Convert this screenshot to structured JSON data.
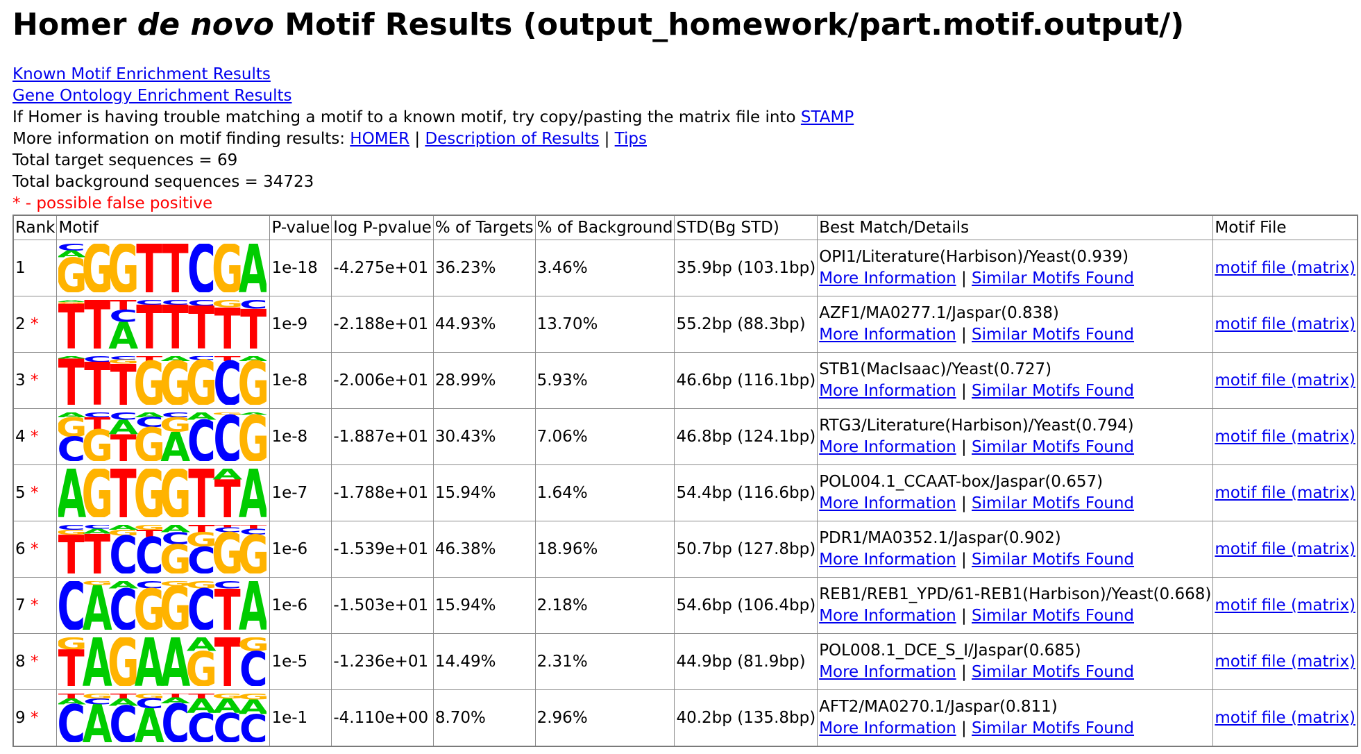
{
  "title": {
    "pre": "Homer ",
    "em": "de novo",
    "post": " Motif Results (output_homework/part.motif.output/)"
  },
  "links": {
    "known": "Known Motif Enrichment Results",
    "go": "Gene Ontology Enrichment Results"
  },
  "stamp": {
    "text": "If Homer is having trouble matching a motif to a known motif, try copy/pasting the matrix file into ",
    "link": "STAMP"
  },
  "more": {
    "text": "More information on motif finding results: ",
    "homer": "HOMER",
    "sep1": " | ",
    "desc": "Description of Results",
    "sep2": " | ",
    "tips": "Tips"
  },
  "totals": {
    "target": "Total target sequences = 69",
    "background": "Total background sequences = 34723"
  },
  "false_positive_note": "* - possible false positive",
  "colors": {
    "link": "#0000EE",
    "false_positive": "#FF0000",
    "A": "#00CC00",
    "C": "#0000FF",
    "G": "#FFB300",
    "T": "#FF0000"
  },
  "table": {
    "headers": [
      "Rank",
      "Motif",
      "P-value",
      "log P-pvalue",
      "% of Targets",
      "% of Background",
      "STD(Bg STD)",
      "Best Match/Details",
      "Motif File"
    ],
    "more_info": "More Information",
    "sep": " | ",
    "similar": "Similar Motifs Found",
    "motif_file": "motif file (matrix)",
    "rows": [
      {
        "rank": "1",
        "star": "",
        "p": "1e-18",
        "logp": "-4.275e+01",
        "targets": "36.23%",
        "bg": "3.46%",
        "std": "35.9bp (103.1bp)",
        "match": "OPI1/Literature(Harbison)/Yeast(0.939)",
        "logo": [
          [
            [
              "G",
              0.72
            ],
            [
              "C",
              0.14
            ],
            [
              "A",
              0.14
            ]
          ],
          [
            [
              "G",
              1
            ]
          ],
          [
            [
              "G",
              1
            ]
          ],
          [
            [
              "T",
              1
            ]
          ],
          [
            [
              "T",
              1
            ]
          ],
          [
            [
              "C",
              1
            ]
          ],
          [
            [
              "G",
              1
            ]
          ],
          [
            [
              "A",
              1
            ]
          ]
        ]
      },
      {
        "rank": "2",
        "star": "*",
        "p": "1e-9",
        "logp": "-2.188e+01",
        "targets": "44.93%",
        "bg": "13.70%",
        "std": "55.2bp (88.3bp)",
        "match": "AZF1/MA0277.1/Jaspar(0.838)",
        "logo": [
          [
            [
              "T",
              0.92
            ],
            [
              "A",
              0.04
            ],
            [
              "G",
              0.04
            ]
          ],
          [
            [
              "T",
              1
            ]
          ],
          [
            [
              "A",
              0.55
            ],
            [
              "C",
              0.25
            ],
            [
              "T",
              0.2
            ]
          ],
          [
            [
              "T",
              0.9
            ],
            [
              "C",
              0.1
            ]
          ],
          [
            [
              "T",
              0.9
            ],
            [
              "C",
              0.1
            ]
          ],
          [
            [
              "T",
              0.88
            ],
            [
              "C",
              0.12
            ]
          ],
          [
            [
              "T",
              0.85
            ],
            [
              "G",
              0.15
            ]
          ],
          [
            [
              "T",
              0.82
            ],
            [
              "C",
              0.18
            ]
          ]
        ]
      },
      {
        "rank": "3",
        "star": "*",
        "p": "1e-8",
        "logp": "-2.006e+01",
        "targets": "28.99%",
        "bg": "5.93%",
        "std": "46.6bp (116.1bp)",
        "match": "STB1(MacIsaac)/Yeast(0.727)",
        "logo": [
          [
            [
              "T",
              0.95
            ],
            [
              "A",
              0.05
            ]
          ],
          [
            [
              "T",
              0.88
            ],
            [
              "C",
              0.12
            ]
          ],
          [
            [
              "T",
              0.85
            ],
            [
              "G",
              0.08
            ],
            [
              "C",
              0.07
            ]
          ],
          [
            [
              "G",
              0.9
            ],
            [
              "T",
              0.1
            ]
          ],
          [
            [
              "G",
              0.9
            ],
            [
              "A",
              0.1
            ]
          ],
          [
            [
              "G",
              0.92
            ],
            [
              "C",
              0.08
            ]
          ],
          [
            [
              "C",
              0.9
            ],
            [
              "T",
              0.1
            ]
          ],
          [
            [
              "G",
              0.9
            ],
            [
              "A",
              0.1
            ]
          ]
        ]
      },
      {
        "rank": "4",
        "star": "*",
        "p": "1e-8",
        "logp": "-1.887e+01",
        "targets": "30.43%",
        "bg": "7.06%",
        "std": "46.8bp (124.1bp)",
        "match": "RTG3/Literature(Harbison)/Yeast(0.794)",
        "logo": [
          [
            [
              "C",
              0.5
            ],
            [
              "G",
              0.4
            ],
            [
              "A",
              0.1
            ]
          ],
          [
            [
              "G",
              0.65
            ],
            [
              "T",
              0.25
            ],
            [
              "C",
              0.1
            ]
          ],
          [
            [
              "T",
              0.55
            ],
            [
              "A",
              0.3
            ],
            [
              "C",
              0.15
            ]
          ],
          [
            [
              "G",
              0.7
            ],
            [
              "C",
              0.2
            ],
            [
              "A",
              0.1
            ]
          ],
          [
            [
              "A",
              0.6
            ],
            [
              "G",
              0.3
            ],
            [
              "C",
              0.1
            ]
          ],
          [
            [
              "C",
              0.85
            ],
            [
              "A",
              0.15
            ]
          ],
          [
            [
              "C",
              0.95
            ],
            [
              "G",
              0.05
            ]
          ],
          [
            [
              "G",
              0.95
            ],
            [
              "A",
              0.05
            ]
          ]
        ]
      },
      {
        "rank": "5",
        "star": "*",
        "p": "1e-7",
        "logp": "-1.788e+01",
        "targets": "15.94%",
        "bg": "1.64%",
        "std": "54.4bp (116.6bp)",
        "match": "POL004.1_CCAAT-box/Jaspar(0.657)",
        "logo": [
          [
            [
              "A",
              1
            ]
          ],
          [
            [
              "G",
              1
            ]
          ],
          [
            [
              "T",
              1
            ]
          ],
          [
            [
              "G",
              1
            ]
          ],
          [
            [
              "G",
              1
            ]
          ],
          [
            [
              "T",
              1
            ]
          ],
          [
            [
              "T",
              0.78
            ],
            [
              "A",
              0.22
            ]
          ],
          [
            [
              "A",
              1
            ]
          ]
        ]
      },
      {
        "rank": "6",
        "star": "*",
        "p": "1e-6",
        "logp": "-1.539e+01",
        "targets": "46.38%",
        "bg": "18.96%",
        "std": "50.7bp (127.8bp)",
        "match": "PDR1/MA0352.1/Jaspar(0.902)",
        "logo": [
          [
            [
              "T",
              0.8
            ],
            [
              "C",
              0.1
            ],
            [
              "G",
              0.1
            ]
          ],
          [
            [
              "T",
              0.82
            ],
            [
              "A",
              0.1
            ],
            [
              "C",
              0.08
            ]
          ],
          [
            [
              "C",
              0.78
            ],
            [
              "G",
              0.12
            ],
            [
              "A",
              0.1
            ]
          ],
          [
            [
              "C",
              0.75
            ],
            [
              "T",
              0.15
            ],
            [
              "G",
              0.1
            ]
          ],
          [
            [
              "G",
              0.6
            ],
            [
              "C",
              0.25
            ],
            [
              "A",
              0.15
            ]
          ],
          [
            [
              "C",
              0.55
            ],
            [
              "G",
              0.3
            ],
            [
              "T",
              0.15
            ]
          ],
          [
            [
              "G",
              0.85
            ],
            [
              "C",
              0.1
            ],
            [
              "T",
              0.05
            ]
          ],
          [
            [
              "G",
              0.8
            ],
            [
              "C",
              0.12
            ],
            [
              "T",
              0.08
            ]
          ]
        ]
      },
      {
        "rank": "7",
        "star": "*",
        "p": "1e-6",
        "logp": "-1.503e+01",
        "targets": "15.94%",
        "bg": "2.18%",
        "std": "54.6bp (106.4bp)",
        "match": "REB1/REB1_YPD/61-REB1(Harbison)/Yeast(0.668)",
        "logo": [
          [
            [
              "C",
              1
            ]
          ],
          [
            [
              "A",
              0.92
            ],
            [
              "G",
              0.08
            ]
          ],
          [
            [
              "C",
              0.85
            ],
            [
              "A",
              0.15
            ]
          ],
          [
            [
              "G",
              0.85
            ],
            [
              "C",
              0.15
            ]
          ],
          [
            [
              "G",
              0.9
            ],
            [
              "G",
              0.1
            ]
          ],
          [
            [
              "C",
              0.85
            ],
            [
              "G",
              0.15
            ]
          ],
          [
            [
              "T",
              0.85
            ],
            [
              "C",
              0.15
            ]
          ],
          [
            [
              "A",
              1
            ]
          ]
        ]
      },
      {
        "rank": "8",
        "star": "*",
        "p": "1e-5",
        "logp": "-1.236e+01",
        "targets": "14.49%",
        "bg": "2.31%",
        "std": "44.9bp (81.9bp)",
        "match": "POL008.1_DCE_S_I/Jaspar(0.685)",
        "logo": [
          [
            [
              "T",
              0.75
            ],
            [
              "G",
              0.25
            ]
          ],
          [
            [
              "A",
              1
            ]
          ],
          [
            [
              "G",
              1
            ]
          ],
          [
            [
              "A",
              1
            ]
          ],
          [
            [
              "A",
              1
            ]
          ],
          [
            [
              "G",
              0.72
            ],
            [
              "A",
              0.28
            ]
          ],
          [
            [
              "T",
              1
            ]
          ],
          [
            [
              "C",
              0.72
            ],
            [
              "G",
              0.28
            ]
          ]
        ]
      },
      {
        "rank": "9",
        "star": "*",
        "p": "1e-1",
        "logp": "-4.110e+00",
        "targets": "8.70%",
        "bg": "2.96%",
        "std": "40.2bp (135.8bp)",
        "match": "AFT2/MA0270.1/Jaspar(0.811)",
        "logo": [
          [
            [
              "C",
              0.78
            ],
            [
              "A",
              0.12
            ],
            [
              "T",
              0.1
            ]
          ],
          [
            [
              "A",
              0.78
            ],
            [
              "C",
              0.12
            ],
            [
              "G",
              0.1
            ]
          ],
          [
            [
              "C",
              0.75
            ],
            [
              "A",
              0.15
            ],
            [
              "T",
              0.1
            ]
          ],
          [
            [
              "A",
              0.7
            ],
            [
              "C",
              0.2
            ],
            [
              "G",
              0.1
            ]
          ],
          [
            [
              "C",
              0.8
            ],
            [
              "A",
              0.12
            ],
            [
              "T",
              0.08
            ]
          ],
          [
            [
              "C",
              0.6
            ],
            [
              "A",
              0.3
            ],
            [
              "T",
              0.1
            ]
          ],
          [
            [
              "C",
              0.6
            ],
            [
              "A",
              0.3
            ],
            [
              "G",
              0.1
            ]
          ],
          [
            [
              "C",
              0.58
            ],
            [
              "A",
              0.3
            ],
            [
              "G",
              0.12
            ]
          ]
        ]
      }
    ]
  }
}
